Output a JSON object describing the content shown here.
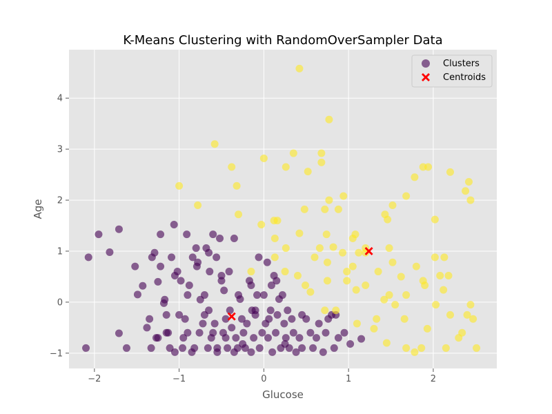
{
  "chart_data": {
    "type": "scatter",
    "title": "K-Means Clustering with RandomOverSampler Data",
    "xlabel": "Glucose",
    "ylabel": "Age",
    "xlim": [
      -2.3,
      2.75
    ],
    "ylim": [
      -1.3,
      4.95
    ],
    "xticks": [
      -2,
      -1,
      0,
      1,
      2
    ],
    "yticks": [
      -1,
      0,
      1,
      2,
      3,
      4
    ],
    "xtick_labels": [
      "−2",
      "−1",
      "0",
      "1",
      "2"
    ],
    "ytick_labels": [
      "−1",
      "0",
      "1",
      "2",
      "3",
      "4"
    ],
    "grid": true,
    "legend_position": "top-right",
    "legend": {
      "clusters_label": "Clusters",
      "centroids_label": "Centroids"
    },
    "colors": {
      "background": "#e5e5e5",
      "cluster_0": "#440154",
      "cluster_1": "#fde725",
      "centroid": "#ff0000"
    },
    "series": [
      {
        "name": "Clusters",
        "cluster": 0,
        "points": [
          [
            -2.1,
            -0.9
          ],
          [
            -2.07,
            0.88
          ],
          [
            -1.95,
            1.33
          ],
          [
            -1.82,
            0.98
          ],
          [
            -1.71,
            1.43
          ],
          [
            -1.71,
            -0.61
          ],
          [
            -1.62,
            -0.9
          ],
          [
            -1.52,
            0.7
          ],
          [
            -1.49,
            0.15
          ],
          [
            -1.43,
            0.32
          ],
          [
            -1.38,
            -0.5
          ],
          [
            -1.33,
            -0.9
          ],
          [
            -1.32,
            0.88
          ],
          [
            -1.29,
            0.97
          ],
          [
            -1.27,
            -0.7
          ],
          [
            -1.25,
            0.4
          ],
          [
            -1.22,
            0.7
          ],
          [
            -1.22,
            1.33
          ],
          [
            -1.18,
            -0.02
          ],
          [
            -1.17,
            0.05
          ],
          [
            -1.15,
            -0.25
          ],
          [
            -1.13,
            -0.6
          ],
          [
            -1.11,
            -0.9
          ],
          [
            -1.09,
            0.88
          ],
          [
            -1.06,
            1.52
          ],
          [
            -1.05,
            0.52
          ],
          [
            -1.02,
            0.6
          ],
          [
            -1.0,
            -0.25
          ],
          [
            -0.98,
            0.42
          ],
          [
            -0.96,
            -0.9
          ],
          [
            -0.93,
            -0.33
          ],
          [
            -0.91,
            1.33
          ],
          [
            -0.9,
            -0.6
          ],
          [
            -0.88,
            0.33
          ],
          [
            -0.84,
            0.88
          ],
          [
            -0.82,
            -0.9
          ],
          [
            -0.8,
            1.06
          ],
          [
            -0.79,
            0.7
          ],
          [
            -0.78,
            0.78
          ],
          [
            -0.76,
            -0.6
          ],
          [
            -0.75,
            0.05
          ],
          [
            -0.72,
            -0.42
          ],
          [
            -0.7,
            -0.25
          ],
          [
            -0.68,
            1.06
          ],
          [
            -0.66,
            -0.9
          ],
          [
            -0.65,
            0.97
          ],
          [
            -0.64,
            0.6
          ],
          [
            -0.62,
            -0.7
          ],
          [
            -0.6,
            1.33
          ],
          [
            -0.58,
            -0.42
          ],
          [
            -0.56,
            0.88
          ],
          [
            -0.55,
            -0.9
          ],
          [
            -0.52,
            1.25
          ],
          [
            -0.5,
            0.52
          ],
          [
            -0.48,
            -0.6
          ],
          [
            -0.47,
            0.23
          ],
          [
            -0.45,
            -0.33
          ],
          [
            -0.43,
            -0.9
          ],
          [
            -0.41,
            0.6
          ],
          [
            -0.4,
            -0.16
          ],
          [
            -0.38,
            -0.5
          ],
          [
            -0.35,
            1.25
          ],
          [
            -0.33,
            -0.7
          ],
          [
            -0.31,
            -0.9
          ],
          [
            -0.28,
            0.06
          ],
          [
            -0.26,
            -0.33
          ],
          [
            -0.24,
            -0.6
          ],
          [
            -0.22,
            -0.9
          ],
          [
            -0.2,
            -0.42
          ],
          [
            -0.17,
            0.42
          ],
          [
            -0.15,
            0.33
          ],
          [
            -0.14,
            -0.16
          ],
          [
            -0.12,
            -0.7
          ],
          [
            -0.1,
            -0.25
          ],
          [
            -0.08,
            0.14
          ],
          [
            -0.06,
            0.88
          ],
          [
            -0.05,
            -0.9
          ],
          [
            -0.02,
            -0.6
          ],
          [
            0.0,
            0.14
          ],
          [
            0.02,
            -0.42
          ],
          [
            0.04,
            0.78
          ],
          [
            0.06,
            -0.33
          ],
          [
            0.08,
            -0.16
          ],
          [
            0.09,
            0.33
          ],
          [
            0.1,
            -0.98
          ],
          [
            0.12,
            0.52
          ],
          [
            0.14,
            -0.6
          ],
          [
            0.16,
            -0.25
          ],
          [
            0.18,
            0.06
          ],
          [
            0.2,
            -0.9
          ],
          [
            0.22,
            0.14
          ],
          [
            0.24,
            -0.42
          ],
          [
            0.26,
            -0.7
          ],
          [
            0.28,
            -0.16
          ],
          [
            0.3,
            -0.9
          ],
          [
            0.33,
            -0.33
          ],
          [
            0.35,
            -0.6
          ],
          [
            0.38,
            -0.98
          ],
          [
            0.42,
            -0.7
          ],
          [
            0.45,
            -0.9
          ],
          [
            0.5,
            -0.33
          ],
          [
            0.55,
            -0.6
          ],
          [
            0.58,
            -0.9
          ],
          [
            0.62,
            -0.7
          ],
          [
            0.65,
            -0.42
          ],
          [
            0.7,
            -0.98
          ],
          [
            0.73,
            -0.6
          ],
          [
            0.76,
            -0.33
          ],
          [
            0.8,
            -0.25
          ],
          [
            0.83,
            -0.9
          ],
          [
            0.85,
            -0.25
          ],
          [
            0.88,
            -0.7
          ],
          [
            0.95,
            -0.6
          ],
          [
            1.02,
            -0.82
          ],
          [
            1.15,
            -0.72
          ],
          [
            -0.55,
            -0.98
          ],
          [
            -0.35,
            -0.98
          ],
          [
            -0.15,
            -0.98
          ],
          [
            -0.85,
            -0.98
          ],
          [
            -1.25,
            -0.7
          ],
          [
            -1.05,
            -0.98
          ],
          [
            -0.95,
            -0.7
          ],
          [
            -0.65,
            -0.16
          ],
          [
            -0.45,
            -0.7
          ],
          [
            -0.25,
            -0.82
          ],
          [
            0.05,
            -0.7
          ],
          [
            0.25,
            -0.82
          ],
          [
            0.45,
            -0.25
          ],
          [
            -0.7,
            0.14
          ],
          [
            -0.5,
            0.42
          ],
          [
            -0.3,
            0.14
          ],
          [
            -0.1,
            -0.16
          ],
          [
            0.15,
            0.42
          ],
          [
            -1.35,
            -0.33
          ],
          [
            -1.15,
            -0.6
          ],
          [
            -0.9,
            0.14
          ],
          [
            -0.6,
            -0.6
          ]
        ]
      },
      {
        "name": "Clusters",
        "cluster": 1,
        "points": [
          [
            0.42,
            4.58
          ],
          [
            0.77,
            3.58
          ],
          [
            -0.58,
            3.1
          ],
          [
            0.35,
            2.92
          ],
          [
            0.68,
            2.92
          ],
          [
            -0.38,
            2.65
          ],
          [
            0.0,
            2.82
          ],
          [
            0.26,
            2.65
          ],
          [
            0.52,
            2.56
          ],
          [
            0.68,
            2.74
          ],
          [
            -1.0,
            2.28
          ],
          [
            -0.32,
            2.28
          ],
          [
            -0.78,
            1.9
          ],
          [
            -0.3,
            1.72
          ],
          [
            0.48,
            1.82
          ],
          [
            0.72,
            1.82
          ],
          [
            0.77,
            2.0
          ],
          [
            0.88,
            1.82
          ],
          [
            0.94,
            2.08
          ],
          [
            0.12,
            1.6
          ],
          [
            0.16,
            1.6
          ],
          [
            -0.03,
            1.52
          ],
          [
            0.42,
            1.35
          ],
          [
            0.74,
            1.33
          ],
          [
            1.08,
            1.33
          ],
          [
            0.66,
            1.06
          ],
          [
            0.26,
            1.06
          ],
          [
            0.13,
            1.25
          ],
          [
            1.05,
            1.25
          ],
          [
            1.2,
            1.06
          ],
          [
            1.43,
            1.72
          ],
          [
            1.46,
            1.62
          ],
          [
            1.52,
            1.9
          ],
          [
            1.68,
            2.08
          ],
          [
            1.78,
            2.45
          ],
          [
            1.88,
            2.65
          ],
          [
            1.94,
            2.65
          ],
          [
            2.2,
            2.55
          ],
          [
            2.38,
            2.18
          ],
          [
            2.42,
            2.36
          ],
          [
            2.44,
            2.0
          ],
          [
            2.02,
            1.62
          ],
          [
            1.48,
            1.06
          ],
          [
            0.6,
            0.88
          ],
          [
            0.75,
            0.78
          ],
          [
            0.93,
            0.97
          ],
          [
            1.12,
            0.97
          ],
          [
            1.05,
            0.7
          ],
          [
            0.98,
            0.6
          ],
          [
            0.13,
            0.88
          ],
          [
            0.25,
            0.6
          ],
          [
            -0.15,
            0.6
          ],
          [
            0.4,
            0.52
          ],
          [
            0.49,
            0.33
          ],
          [
            0.75,
            0.42
          ],
          [
            0.98,
            0.42
          ],
          [
            1.09,
            0.24
          ],
          [
            1.2,
            0.33
          ],
          [
            1.52,
            0.78
          ],
          [
            2.02,
            0.88
          ],
          [
            2.13,
            0.88
          ],
          [
            2.08,
            0.52
          ],
          [
            2.18,
            0.52
          ],
          [
            1.88,
            0.42
          ],
          [
            1.9,
            0.33
          ],
          [
            2.12,
            0.24
          ],
          [
            1.48,
            0.14
          ],
          [
            1.42,
            0.05
          ],
          [
            1.68,
            0.14
          ],
          [
            1.55,
            -0.05
          ],
          [
            2.03,
            -0.05
          ],
          [
            2.44,
            -0.05
          ],
          [
            0.72,
            -0.16
          ],
          [
            0.85,
            -0.16
          ],
          [
            1.1,
            -0.42
          ],
          [
            1.3,
            -0.52
          ],
          [
            1.33,
            -0.33
          ],
          [
            1.45,
            -0.8
          ],
          [
            1.66,
            -0.33
          ],
          [
            1.68,
            -0.9
          ],
          [
            1.78,
            -0.98
          ],
          [
            1.86,
            -0.9
          ],
          [
            1.93,
            -0.52
          ],
          [
            2.2,
            -0.25
          ],
          [
            2.3,
            -0.7
          ],
          [
            2.34,
            -0.6
          ],
          [
            2.4,
            -0.25
          ],
          [
            2.47,
            -0.33
          ],
          [
            2.51,
            -0.9
          ],
          [
            2.15,
            -0.9
          ],
          [
            1.2,
            0.97
          ],
          [
            0.82,
            1.08
          ],
          [
            0.55,
            0.2
          ],
          [
            1.35,
            0.6
          ],
          [
            1.62,
            0.5
          ],
          [
            1.8,
            0.7
          ]
        ]
      }
    ],
    "centroids": [
      {
        "name": "Centroids",
        "x": -0.38,
        "y": -0.28
      },
      {
        "name": "Centroids",
        "x": 1.24,
        "y": 1.0
      }
    ]
  }
}
